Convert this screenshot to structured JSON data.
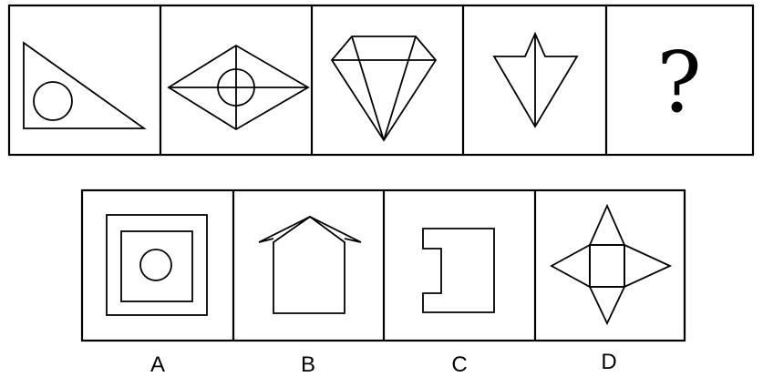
{
  "question_row": {
    "panels": [
      {
        "icon": "triangle-with-circle-icon"
      },
      {
        "icon": "rhombus-with-circle-icon"
      },
      {
        "icon": "diamond-gem-icon"
      },
      {
        "icon": "arrowhead-icon"
      },
      {
        "icon": "question-mark-icon",
        "text": "?"
      }
    ]
  },
  "options_row": {
    "options": [
      {
        "label": "A",
        "icon": "nested-squares-with-circle-icon"
      },
      {
        "label": "B",
        "icon": "house-shape-icon"
      },
      {
        "label": "C",
        "icon": "bracket-shape-icon"
      },
      {
        "label": "D",
        "icon": "square-with-four-triangles-icon"
      }
    ]
  }
}
